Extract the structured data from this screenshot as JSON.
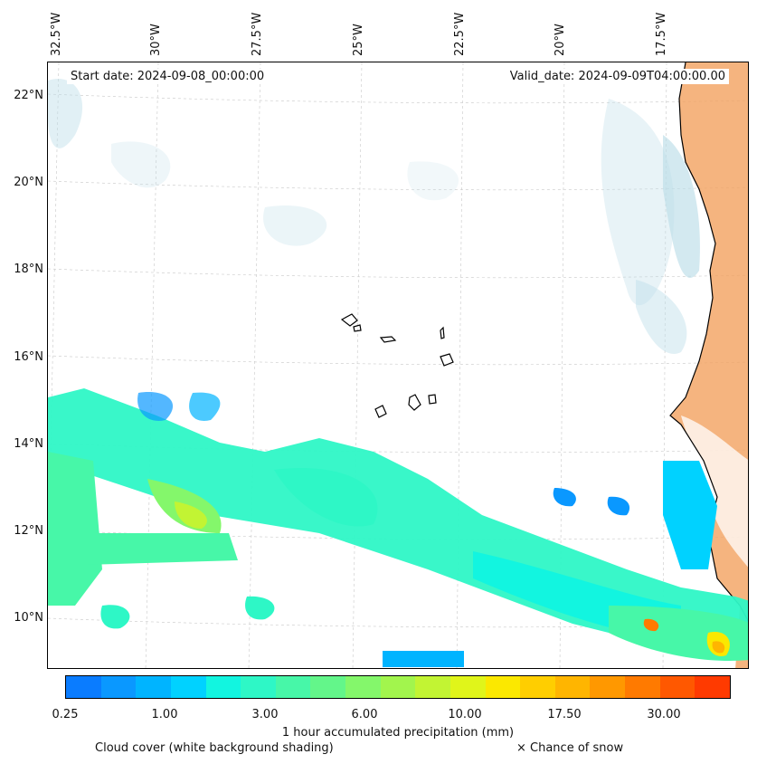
{
  "map": {
    "start_date_text": "Start date: 2024-09-08_00:00:00",
    "valid_date_text": "Valid_date: 2024-09-09T04:00:00.00",
    "lon_labels": [
      "32.5°W",
      "30°W",
      "27.5°W",
      "25°W",
      "22.5°W",
      "20°W",
      "17.5°W"
    ],
    "lat_labels": [
      "22°N",
      "20°N",
      "18°N",
      "16°N",
      "14°N",
      "12°N",
      "10°N"
    ],
    "gridlines": true,
    "coastline_color": "#000000",
    "land_dust_color": "#f2a15f",
    "cloud_shade_color": "#bcdde8"
  },
  "colorbar": {
    "title": "1 hour accumulated precipitation (mm)",
    "tick_labels": [
      "0.25",
      "1.00",
      "3.00",
      "6.00",
      "10.00",
      "17.50",
      "30.00"
    ],
    "colors": [
      "#0a7cff",
      "#0a98ff",
      "#00b4ff",
      "#00d2ff",
      "#12f5e0",
      "#2ef7c6",
      "#47f7a8",
      "#63f68a",
      "#84f76b",
      "#a2f54d",
      "#c2f433",
      "#e0f51a",
      "#fbe800",
      "#ffce00",
      "#ffb500",
      "#ff9800",
      "#ff7a00",
      "#ff5800",
      "#ff3a00"
    ]
  },
  "legend": {
    "cloud_text": "Cloud cover (white background shading)",
    "snow_text": "× Chance of snow"
  }
}
